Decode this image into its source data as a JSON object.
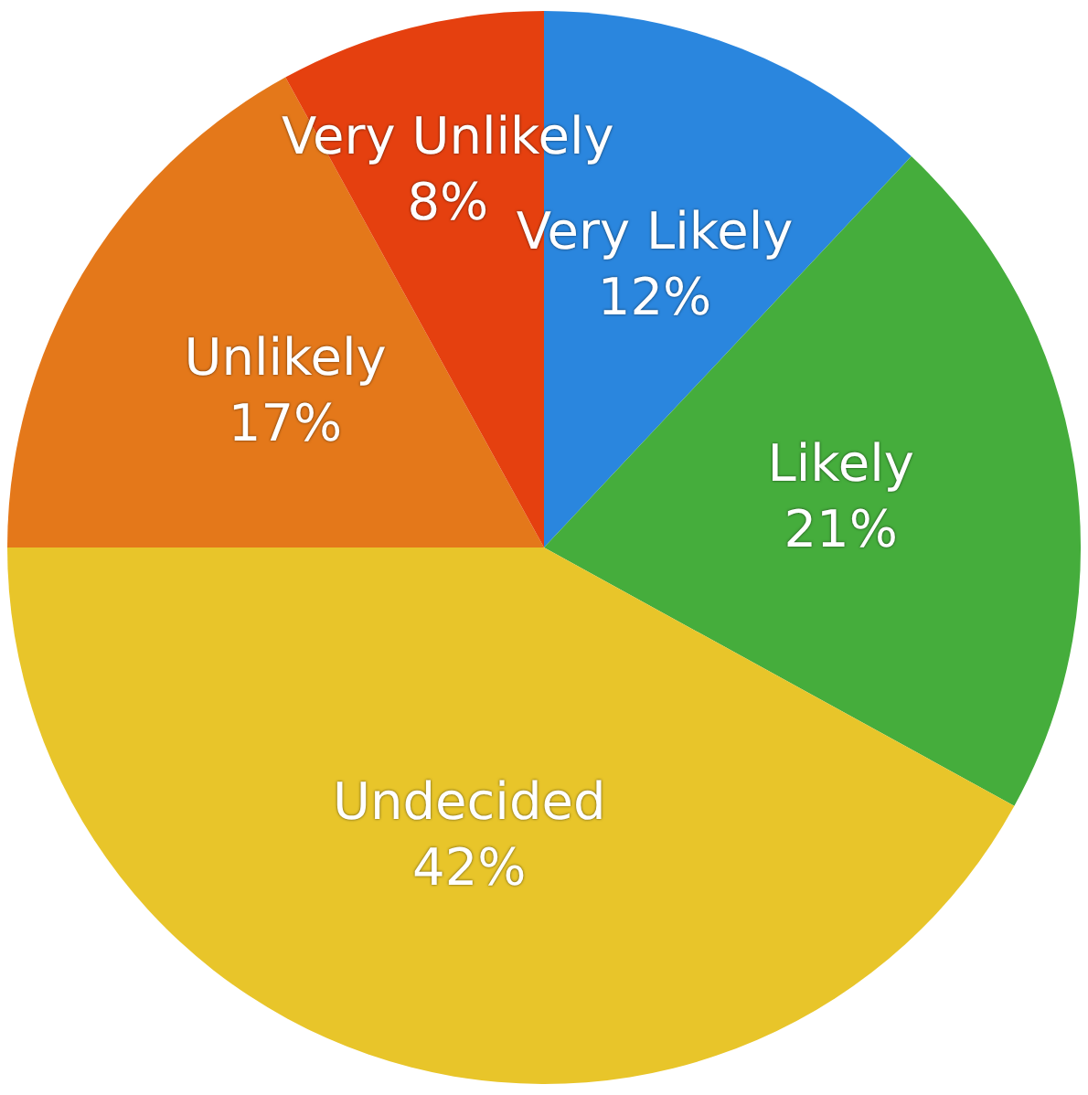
{
  "chart_data": {
    "type": "pie",
    "categories": [
      "Very Likely",
      "Likely",
      "Undecided",
      "Unlikely",
      "Very Unlikely"
    ],
    "values": [
      12,
      21,
      42,
      17,
      8
    ],
    "colors": [
      "#2a86de",
      "#45ad3c",
      "#e8c52a",
      "#e4781a",
      "#e5400f"
    ],
    "value_labels": [
      "12%",
      "21%",
      "42%",
      "17%",
      "8%"
    ],
    "legend": false
  }
}
